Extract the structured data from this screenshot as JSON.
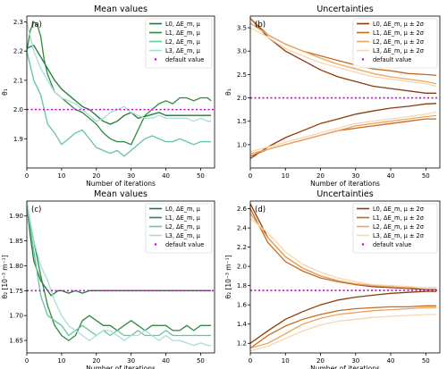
{
  "chart_data": [
    {
      "type": "line",
      "panel_label": "(a)",
      "title": "Mean values",
      "xlabel": "Number of iterations",
      "ylabel": "θ₁",
      "xlim": [
        0,
        54
      ],
      "ylim": [
        1.8,
        2.32
      ],
      "xticks": [
        "0",
        "10",
        "20",
        "30",
        "40",
        "50"
      ],
      "yticks": [
        "1.9",
        "2.0",
        "2.1",
        "2.2",
        "2.3"
      ],
      "default_value": 2.0,
      "legend_position": "upper right",
      "legend": [
        "L0, ΔE_m, μ",
        "L1, ΔE_m, μ",
        "L2, ΔE_m, μ",
        "L3, ΔE_m, μ",
        "default value"
      ],
      "series": [
        {
          "name": "L0, ΔE_m, μ",
          "color": "#1b7a36",
          "x": [
            0,
            2,
            4,
            6,
            8,
            10,
            12,
            14,
            16,
            18,
            20,
            22,
            24,
            26,
            28,
            30,
            32,
            35,
            38,
            40,
            42,
            44,
            46,
            48,
            50,
            52,
            53
          ],
          "y": [
            2.21,
            2.22,
            2.18,
            2.14,
            2.1,
            2.07,
            2.05,
            2.03,
            2.01,
            2.0,
            1.98,
            1.96,
            1.95,
            1.96,
            1.98,
            1.99,
            1.97,
            1.98,
            1.99,
            1.98,
            1.98,
            1.98,
            1.98,
            1.98,
            1.98,
            1.98,
            1.98
          ]
        },
        {
          "name": "L1, ΔE_m, μ",
          "color": "#2e8b3e",
          "x": [
            0,
            1,
            2,
            3,
            4,
            5,
            6,
            7,
            8,
            9,
            10,
            12,
            14,
            16,
            18,
            20,
            22,
            24,
            26,
            28,
            30,
            32,
            34,
            36,
            38,
            40,
            42,
            44,
            46,
            48,
            50,
            52,
            53
          ],
          "y": [
            2.2,
            2.27,
            2.3,
            2.29,
            2.25,
            2.17,
            2.12,
            2.09,
            2.06,
            2.05,
            2.04,
            2.02,
            2.0,
            1.99,
            1.97,
            1.95,
            1.92,
            1.9,
            1.89,
            1.89,
            1.88,
            1.93,
            1.98,
            2.0,
            2.02,
            2.03,
            2.02,
            2.04,
            2.04,
            2.03,
            2.04,
            2.04,
            2.03
          ]
        },
        {
          "name": "L2, ΔE_m, μ",
          "color": "#66c2a4",
          "x": [
            0,
            2,
            4,
            6,
            8,
            10,
            12,
            14,
            16,
            18,
            20,
            22,
            24,
            26,
            28,
            30,
            32,
            34,
            36,
            38,
            40,
            42,
            44,
            46,
            48,
            50,
            52,
            53
          ],
          "y": [
            2.2,
            2.1,
            2.05,
            1.95,
            1.92,
            1.88,
            1.9,
            1.92,
            1.93,
            1.9,
            1.87,
            1.86,
            1.85,
            1.86,
            1.84,
            1.86,
            1.88,
            1.9,
            1.91,
            1.9,
            1.89,
            1.89,
            1.9,
            1.89,
            1.88,
            1.89,
            1.89,
            1.89
          ]
        },
        {
          "name": "L3, ΔE_m, μ",
          "color": "#a8ded8",
          "x": [
            0,
            2,
            4,
            6,
            8,
            10,
            12,
            14,
            16,
            18,
            20,
            22,
            24,
            26,
            28,
            30,
            32,
            34,
            36,
            38,
            40,
            42,
            44,
            46,
            48,
            50,
            52,
            53
          ],
          "y": [
            2.3,
            2.2,
            2.14,
            2.1,
            2.06,
            2.04,
            2.03,
            2.02,
            2.0,
            1.98,
            1.96,
            1.97,
            1.99,
            2.0,
            2.01,
            1.99,
            1.98,
            1.97,
            1.97,
            1.98,
            1.97,
            1.97,
            1.97,
            1.97,
            1.96,
            1.97,
            1.96,
            1.96
          ]
        }
      ]
    },
    {
      "type": "line",
      "panel_label": "(b)",
      "title": "Uncertainties",
      "xlabel": "Number of iterations",
      "ylabel": "θ₁",
      "xlim": [
        0,
        54
      ],
      "ylim": [
        0.5,
        3.75
      ],
      "xticks": [
        "0",
        "10",
        "20",
        "30",
        "40",
        "50"
      ],
      "yticks": [
        "1.0",
        "1.5",
        "2.0",
        "2.5",
        "3.0",
        "3.5"
      ],
      "default_value": 2.0,
      "legend_position": "upper right",
      "legend": [
        "L0, ΔE_m, μ ± 2σ",
        "L1, ΔE_m, μ ± 2σ",
        "L2, ΔE_m, μ ± 2σ",
        "L3, ΔE_m, μ ± 2σ",
        "default value"
      ],
      "series": [
        {
          "name": "L0, ΔE_m, μ ± 2σ",
          "color": "#8c3b0c",
          "x": [
            0,
            5,
            10,
            15,
            20,
            25,
            30,
            35,
            40,
            45,
            50,
            53
          ],
          "upper": [
            3.7,
            3.3,
            3.0,
            2.8,
            2.6,
            2.45,
            2.35,
            2.25,
            2.2,
            2.15,
            2.1,
            2.1
          ],
          "lower": [
            0.7,
            0.95,
            1.15,
            1.3,
            1.45,
            1.55,
            1.65,
            1.72,
            1.78,
            1.82,
            1.87,
            1.88
          ]
        },
        {
          "name": "L1, ΔE_m, μ ± 2σ",
          "color": "#c66a1e",
          "x": [
            0,
            5,
            10,
            15,
            20,
            25,
            30,
            35,
            40,
            45,
            50,
            53
          ],
          "upper": [
            3.7,
            3.35,
            3.15,
            3.0,
            2.9,
            2.8,
            2.7,
            2.62,
            2.58,
            2.52,
            2.5,
            2.48
          ],
          "lower": [
            0.75,
            0.9,
            1.0,
            1.1,
            1.2,
            1.3,
            1.35,
            1.4,
            1.45,
            1.5,
            1.55,
            1.55
          ]
        },
        {
          "name": "L2, ΔE_m, μ ± 2σ",
          "color": "#eaa660",
          "x": [
            0,
            5,
            10,
            15,
            20,
            25,
            30,
            35,
            40,
            45,
            50,
            53
          ],
          "upper": [
            3.6,
            3.35,
            3.15,
            3.0,
            2.85,
            2.72,
            2.62,
            2.52,
            2.45,
            2.4,
            2.35,
            2.3
          ],
          "lower": [
            0.8,
            0.9,
            1.0,
            1.1,
            1.2,
            1.3,
            1.4,
            1.45,
            1.5,
            1.55,
            1.6,
            1.62
          ]
        },
        {
          "name": "L3, ΔE_m, μ ± 2σ",
          "color": "#f6d7b0",
          "x": [
            0,
            5,
            10,
            15,
            20,
            25,
            30,
            35,
            40,
            45,
            50,
            53
          ],
          "upper": [
            3.5,
            3.3,
            3.05,
            2.9,
            2.75,
            2.65,
            2.55,
            2.45,
            2.4,
            2.35,
            2.3,
            2.25
          ],
          "lower": [
            0.85,
            0.95,
            1.05,
            1.15,
            1.25,
            1.35,
            1.45,
            1.5,
            1.55,
            1.6,
            1.65,
            1.7
          ]
        }
      ]
    },
    {
      "type": "line",
      "panel_label": "(c)",
      "title": "Mean values",
      "xlabel": "Number of iterations",
      "ylabel": "θ₂ [10⁻³ m⁻¹]",
      "xlim": [
        0,
        54
      ],
      "ylim": [
        1.625,
        1.93
      ],
      "xticks": [
        "0",
        "10",
        "20",
        "30",
        "40",
        "50"
      ],
      "yticks": [
        "1.65",
        "1.70",
        "1.75",
        "1.80",
        "1.85",
        "1.90"
      ],
      "default_value": 1.75,
      "legend_position": "upper right",
      "legend": [
        "L0, ΔE_m, μ",
        "L1, ΔE_m, μ",
        "L2, ΔE_m, μ",
        "L3, ΔE_m, μ",
        "default value"
      ],
      "series": [
        {
          "name": "L0, ΔE_m, μ",
          "color": "#1b7a36",
          "x": [
            0,
            1,
            2,
            3,
            4,
            5,
            6,
            7,
            8,
            9,
            10,
            12,
            14,
            16,
            18,
            20,
            25,
            30,
            35,
            40,
            45,
            50,
            53
          ],
          "y": [
            1.92,
            1.86,
            1.81,
            1.79,
            1.77,
            1.76,
            1.75,
            1.74,
            1.745,
            1.75,
            1.75,
            1.745,
            1.75,
            1.745,
            1.75,
            1.75,
            1.75,
            1.75,
            1.75,
            1.75,
            1.75,
            1.75,
            1.75
          ]
        },
        {
          "name": "L1, ΔE_m, μ",
          "color": "#2e8b3e",
          "x": [
            0,
            2,
            4,
            6,
            8,
            10,
            12,
            14,
            16,
            18,
            20,
            22,
            24,
            26,
            28,
            30,
            32,
            34,
            36,
            38,
            40,
            42,
            44,
            46,
            48,
            50,
            52,
            53
          ],
          "y": [
            1.92,
            1.85,
            1.78,
            1.72,
            1.68,
            1.66,
            1.65,
            1.66,
            1.69,
            1.7,
            1.69,
            1.68,
            1.68,
            1.67,
            1.68,
            1.69,
            1.68,
            1.67,
            1.68,
            1.68,
            1.68,
            1.67,
            1.67,
            1.68,
            1.67,
            1.68,
            1.68,
            1.68
          ]
        },
        {
          "name": "L2, ΔE_m, μ",
          "color": "#66c2a4",
          "x": [
            0,
            2,
            4,
            6,
            8,
            10,
            12,
            14,
            16,
            18,
            20,
            22,
            24,
            26,
            28,
            30,
            32,
            34,
            36,
            38,
            40,
            42,
            44,
            46,
            48,
            50,
            52,
            53
          ],
          "y": [
            1.92,
            1.83,
            1.74,
            1.7,
            1.69,
            1.68,
            1.66,
            1.67,
            1.68,
            1.67,
            1.66,
            1.67,
            1.66,
            1.67,
            1.66,
            1.66,
            1.67,
            1.66,
            1.66,
            1.66,
            1.67,
            1.66,
            1.66,
            1.66,
            1.66,
            1.66,
            1.66,
            1.66
          ]
        },
        {
          "name": "L3, ΔE_m, μ",
          "color": "#a8ded8",
          "x": [
            0,
            2,
            4,
            6,
            8,
            10,
            12,
            14,
            16,
            18,
            20,
            22,
            24,
            26,
            28,
            30,
            32,
            34,
            36,
            38,
            40,
            42,
            44,
            46,
            48,
            50,
            52,
            53
          ],
          "y": [
            1.93,
            1.85,
            1.8,
            1.77,
            1.73,
            1.7,
            1.68,
            1.67,
            1.66,
            1.65,
            1.66,
            1.67,
            1.67,
            1.66,
            1.65,
            1.66,
            1.66,
            1.67,
            1.66,
            1.65,
            1.66,
            1.65,
            1.65,
            1.645,
            1.64,
            1.645,
            1.64,
            1.64
          ]
        }
      ]
    },
    {
      "type": "line",
      "panel_label": "(d)",
      "title": "Uncertainties",
      "xlabel": "Number of iterations",
      "ylabel": "θ₂ [10⁻³ m⁻¹]",
      "xlim": [
        0,
        54
      ],
      "ylim": [
        1.1,
        2.68
      ],
      "xticks": [
        "0",
        "10",
        "20",
        "30",
        "40",
        "50"
      ],
      "yticks": [
        "1.2",
        "1.4",
        "1.6",
        "1.8",
        "2.0",
        "2.2",
        "2.4",
        "2.6"
      ],
      "default_value": 1.75,
      "legend_position": "upper right",
      "legend": [
        "L0, ΔE_m, μ ± 2σ",
        "L1, ΔE_m, μ ± 2σ",
        "L2, ΔE_m, μ ± 2σ",
        "L3, ΔE_m, μ ± 2σ",
        "default value"
      ],
      "series": [
        {
          "name": "L0, ΔE_m, μ ± 2σ",
          "color": "#8c3b0c",
          "x": [
            0,
            5,
            10,
            15,
            20,
            25,
            30,
            35,
            40,
            45,
            50,
            53
          ],
          "upper": [
            2.65,
            2.3,
            2.1,
            1.98,
            1.9,
            1.85,
            1.81,
            1.79,
            1.78,
            1.77,
            1.76,
            1.76
          ],
          "lower": [
            1.2,
            1.33,
            1.45,
            1.53,
            1.6,
            1.65,
            1.68,
            1.7,
            1.72,
            1.73,
            1.74,
            1.74
          ]
        },
        {
          "name": "L1, ΔE_m, μ ± 2σ",
          "color": "#c66a1e",
          "x": [
            0,
            5,
            10,
            15,
            20,
            25,
            30,
            35,
            40,
            45,
            50,
            53
          ],
          "upper": [
            2.6,
            2.25,
            2.05,
            1.95,
            1.88,
            1.84,
            1.81,
            1.8,
            1.79,
            1.78,
            1.78,
            1.78
          ],
          "lower": [
            1.15,
            1.28,
            1.38,
            1.45,
            1.5,
            1.54,
            1.56,
            1.57,
            1.58,
            1.58,
            1.59,
            1.59
          ]
        },
        {
          "name": "L2, ΔE_m, μ ± 2σ",
          "color": "#eaa660",
          "x": [
            0,
            5,
            10,
            15,
            20,
            25,
            30,
            35,
            40,
            45,
            50,
            53
          ],
          "upper": [
            2.55,
            2.3,
            2.1,
            1.98,
            1.9,
            1.85,
            1.82,
            1.8,
            1.79,
            1.78,
            1.78,
            1.78
          ],
          "lower": [
            1.15,
            1.2,
            1.3,
            1.4,
            1.46,
            1.5,
            1.52,
            1.54,
            1.55,
            1.56,
            1.57,
            1.57
          ]
        },
        {
          "name": "L3, ΔE_m, μ ± 2σ",
          "color": "#f6d7b0",
          "x": [
            0,
            5,
            10,
            15,
            20,
            25,
            30,
            35,
            40,
            45,
            50,
            53
          ],
          "upper": [
            2.5,
            2.35,
            2.15,
            2.02,
            1.94,
            1.88,
            1.84,
            1.81,
            1.8,
            1.79,
            1.78,
            1.78
          ],
          "lower": [
            1.12,
            1.17,
            1.25,
            1.33,
            1.39,
            1.43,
            1.45,
            1.47,
            1.48,
            1.49,
            1.5,
            1.5
          ]
        }
      ]
    }
  ]
}
